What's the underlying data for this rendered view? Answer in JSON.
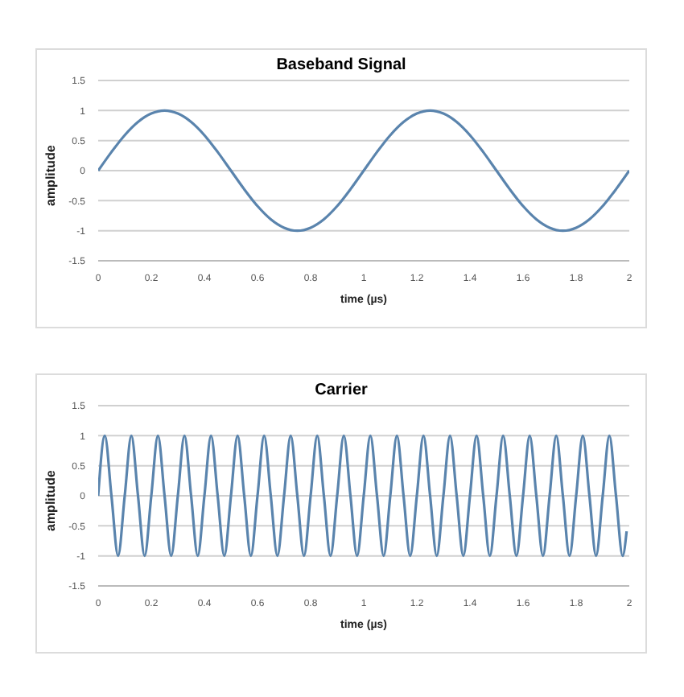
{
  "chart_data": [
    {
      "type": "line",
      "title": "Baseband Signal",
      "xlabel": "time (µs)",
      "ylabel": "amplitude",
      "color": "#5a84ad",
      "grid": "y",
      "xlim": [
        0,
        2
      ],
      "xticks": [
        0,
        0.2,
        0.4,
        0.6,
        0.8,
        1,
        1.2,
        1.4,
        1.6,
        1.8,
        2
      ],
      "ylim": [
        -1.5,
        1.5
      ],
      "yticks": [
        -1.5,
        -1,
        -0.5,
        0,
        0.5,
        1,
        1.5
      ],
      "x": [
        0,
        0.05,
        0.1,
        0.15,
        0.2,
        0.25,
        0.3,
        0.35,
        0.4,
        0.45,
        0.5,
        0.55,
        0.6,
        0.65,
        0.7,
        0.75,
        0.8,
        0.85,
        0.9,
        0.95,
        1,
        1.05,
        1.1,
        1.15,
        1.2,
        1.25,
        1.3,
        1.35,
        1.4,
        1.45,
        1.5,
        1.55,
        1.6,
        1.65,
        1.7,
        1.75,
        1.8,
        1.85,
        1.9,
        1.95,
        2
      ],
      "values": [
        0,
        0.31,
        0.59,
        0.81,
        0.95,
        1,
        0.95,
        0.81,
        0.59,
        0.31,
        0,
        -0.31,
        -0.59,
        -0.81,
        -0.95,
        -1,
        -0.95,
        -0.81,
        -0.59,
        -0.31,
        0,
        0.31,
        0.59,
        0.81,
        0.95,
        1,
        0.95,
        0.81,
        0.59,
        0.31,
        0,
        -0.31,
        -0.59,
        -0.81,
        -0.95,
        -1,
        -0.95,
        -0.81,
        -0.59,
        -0.31,
        0
      ]
    },
    {
      "type": "line",
      "title": "Carrier",
      "xlabel": "time (µs)",
      "ylabel": "amplitude",
      "color": "#5a84ad",
      "grid": "y",
      "xlim": [
        0,
        2
      ],
      "xticks": [
        0,
        0.2,
        0.4,
        0.6,
        0.8,
        1,
        1.2,
        1.4,
        1.6,
        1.8,
        2
      ],
      "ylim": [
        -1.5,
        1.5
      ],
      "yticks": [
        -1.5,
        -1,
        -0.5,
        0,
        0.5,
        1,
        1.5
      ],
      "x": [
        0,
        0.025,
        0.05,
        0.075,
        0.1,
        0.125,
        0.15,
        0.175,
        0.2,
        0.225,
        0.25,
        0.275,
        0.3,
        0.325,
        0.35,
        0.375,
        0.4,
        0.425,
        0.45,
        0.475,
        0.5,
        0.525,
        0.55,
        0.575,
        0.6,
        0.625,
        0.65,
        0.675,
        0.7,
        0.725,
        0.75,
        0.775,
        0.8,
        0.825,
        0.85,
        0.875,
        0.9,
        0.925,
        0.95,
        0.975,
        1,
        1.025,
        1.05,
        1.075,
        1.1,
        1.125,
        1.15,
        1.175,
        1.2,
        1.225,
        1.25,
        1.275,
        1.3,
        1.325,
        1.35,
        1.375,
        1.4,
        1.425,
        1.45,
        1.475,
        1.5,
        1.525,
        1.55,
        1.575,
        1.6,
        1.625,
        1.65,
        1.675,
        1.7,
        1.725,
        1.75,
        1.775,
        1.8,
        1.825,
        1.85,
        1.875,
        1.9,
        1.925,
        1.95,
        1.975,
        1.99
      ],
      "values": [
        0,
        1,
        0,
        -1,
        0,
        1,
        0,
        -1,
        0,
        1,
        0,
        -1,
        0,
        1,
        0,
        -1,
        0,
        1,
        0,
        -1,
        0,
        1,
        0,
        -1,
        0,
        1,
        0,
        -1,
        0,
        1,
        0,
        -1,
        0,
        1,
        0,
        -1,
        0,
        1,
        0,
        -1,
        0,
        1,
        0,
        -1,
        0,
        1,
        0,
        -1,
        0,
        1,
        0,
        -1,
        0,
        1,
        0,
        -1,
        0,
        1,
        0,
        -1,
        0,
        1,
        0,
        -1,
        0,
        1,
        0,
        -1,
        0,
        1,
        0,
        -1,
        0,
        1,
        0,
        -1,
        0,
        1,
        0,
        -1,
        -0.59
      ]
    }
  ]
}
